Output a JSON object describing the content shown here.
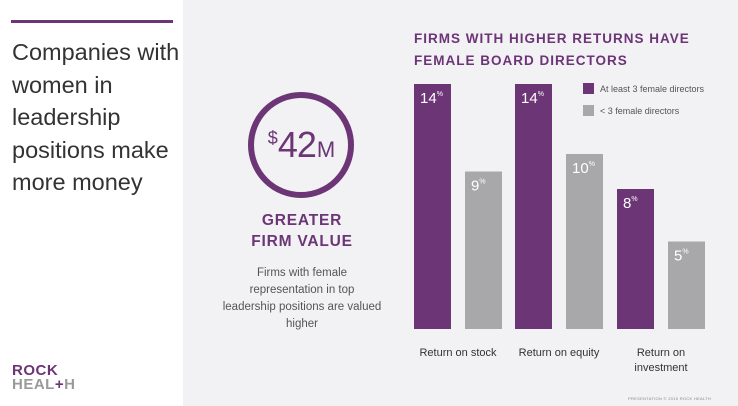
{
  "headline": "Companies with women in leadership positions make more money",
  "logo": {
    "line1": "ROCK",
    "line2_a": "HEAL",
    "line2_plus": "+",
    "line2_b": "H"
  },
  "stat": {
    "currency": "$",
    "value": "42",
    "suffix": "M",
    "title_line1": "GREATER",
    "title_line2": "FIRM VALUE",
    "description": "Firms with female representation in top leadership positions are valued higher"
  },
  "footer_note": "PRESENTATION © 2015 ROCK HEALTH",
  "colors": {
    "purple": "#6b3576",
    "gray": "#a8a8ab",
    "background": "#f2f1f4"
  },
  "chart_data": {
    "type": "bar",
    "title_line1": "FIRMS WITH HIGHER RETURNS HAVE",
    "title_line2": "FEMALE BOARD DIRECTORS",
    "categories": [
      "Return on stock",
      "Return on equity",
      "Return on investment"
    ],
    "category_lines": [
      [
        "Return on stock"
      ],
      [
        "Return on equity"
      ],
      [
        "Return on",
        "investment"
      ]
    ],
    "series": [
      {
        "name": "At least 3 female directors",
        "color": "#6b3576",
        "values": [
          14,
          14,
          8
        ]
      },
      {
        "name": "< 3 female directors",
        "color": "#a8a8ab",
        "values": [
          9,
          10,
          5
        ]
      }
    ],
    "unit": "%",
    "ylim": [
      0,
      14
    ],
    "grid": false,
    "legend_position": "top-right"
  }
}
